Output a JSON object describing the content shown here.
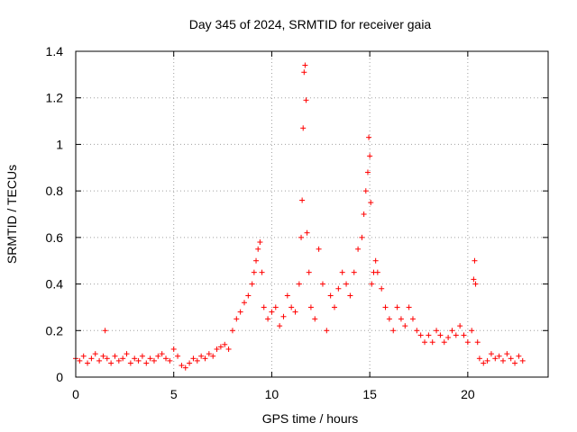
{
  "chart_data": {
    "type": "scatter",
    "title": "Day 345 of 2024, SRMTID for receiver gaia",
    "xlabel": "GPS time / hours",
    "ylabel": "SRMTID / TECUs",
    "xlim": [
      0,
      24.1
    ],
    "ylim": [
      0,
      1.4
    ],
    "x_ticks": [
      0,
      5,
      10,
      15,
      20
    ],
    "x_tick_labels": [
      "0",
      "5",
      "10",
      "15",
      "20"
    ],
    "y_ticks": [
      0,
      0.2,
      0.4,
      0.6,
      0.8,
      1.0,
      1.2,
      1.4
    ],
    "y_tick_labels": [
      "0",
      "0.2",
      "0.4",
      "0.6",
      "0.8",
      "1",
      "1.2",
      "1.4"
    ],
    "grid": true,
    "marker": "+",
    "series": [
      {
        "name": "SRMTID",
        "color": "#ff0000",
        "x": [
          0.0,
          0.2,
          0.4,
          0.6,
          0.8,
          1.0,
          1.2,
          1.4,
          1.5,
          1.6,
          1.8,
          2.0,
          2.2,
          2.4,
          2.6,
          2.8,
          3.0,
          3.2,
          3.4,
          3.6,
          3.8,
          4.0,
          4.2,
          4.4,
          4.6,
          4.8,
          5.0,
          5.2,
          5.4,
          5.6,
          5.8,
          6.0,
          6.2,
          6.4,
          6.6,
          6.8,
          7.0,
          7.2,
          7.4,
          7.6,
          7.8,
          8.0,
          8.2,
          8.4,
          8.6,
          8.8,
          9.0,
          9.1,
          9.2,
          9.3,
          9.4,
          9.5,
          9.6,
          9.8,
          10.0,
          10.2,
          10.4,
          10.6,
          10.8,
          11.0,
          11.2,
          11.4,
          11.5,
          11.55,
          11.6,
          11.65,
          11.7,
          11.75,
          11.8,
          11.9,
          12.0,
          12.2,
          12.4,
          12.6,
          12.8,
          13.0,
          13.2,
          13.4,
          13.6,
          13.8,
          14.0,
          14.2,
          14.4,
          14.6,
          14.7,
          14.8,
          14.9,
          14.95,
          15.0,
          15.05,
          15.1,
          15.2,
          15.3,
          15.4,
          15.6,
          15.8,
          16.0,
          16.2,
          16.4,
          16.6,
          16.8,
          17.0,
          17.2,
          17.4,
          17.6,
          17.8,
          18.0,
          18.2,
          18.4,
          18.6,
          18.8,
          19.0,
          19.2,
          19.4,
          19.6,
          19.8,
          20.0,
          20.2,
          20.3,
          20.35,
          20.4,
          20.5,
          20.6,
          20.8,
          21.0,
          21.2,
          21.4,
          21.6,
          21.8,
          22.0,
          22.2,
          22.4,
          22.6,
          22.8
        ],
        "y": [
          0.08,
          0.07,
          0.09,
          0.06,
          0.08,
          0.1,
          0.07,
          0.09,
          0.2,
          0.08,
          0.06,
          0.09,
          0.07,
          0.08,
          0.1,
          0.06,
          0.08,
          0.07,
          0.09,
          0.06,
          0.08,
          0.07,
          0.09,
          0.1,
          0.08,
          0.07,
          0.12,
          0.09,
          0.05,
          0.04,
          0.06,
          0.08,
          0.07,
          0.09,
          0.08,
          0.1,
          0.09,
          0.12,
          0.13,
          0.14,
          0.12,
          0.2,
          0.25,
          0.28,
          0.32,
          0.35,
          0.4,
          0.45,
          0.5,
          0.55,
          0.58,
          0.45,
          0.3,
          0.25,
          0.28,
          0.3,
          0.22,
          0.26,
          0.35,
          0.3,
          0.28,
          0.4,
          0.6,
          0.76,
          1.07,
          1.31,
          1.34,
          1.19,
          0.62,
          0.45,
          0.3,
          0.25,
          0.55,
          0.4,
          0.2,
          0.35,
          0.3,
          0.38,
          0.45,
          0.4,
          0.35,
          0.45,
          0.55,
          0.6,
          0.7,
          0.8,
          0.88,
          1.03,
          0.95,
          0.75,
          0.4,
          0.45,
          0.5,
          0.45,
          0.38,
          0.3,
          0.25,
          0.2,
          0.3,
          0.25,
          0.22,
          0.3,
          0.25,
          0.2,
          0.18,
          0.15,
          0.18,
          0.15,
          0.2,
          0.18,
          0.15,
          0.17,
          0.2,
          0.18,
          0.22,
          0.18,
          0.15,
          0.2,
          0.42,
          0.5,
          0.4,
          0.15,
          0.08,
          0.06,
          0.07,
          0.1,
          0.08,
          0.09,
          0.07,
          0.1,
          0.08,
          0.06,
          0.09,
          0.07
        ]
      }
    ]
  }
}
